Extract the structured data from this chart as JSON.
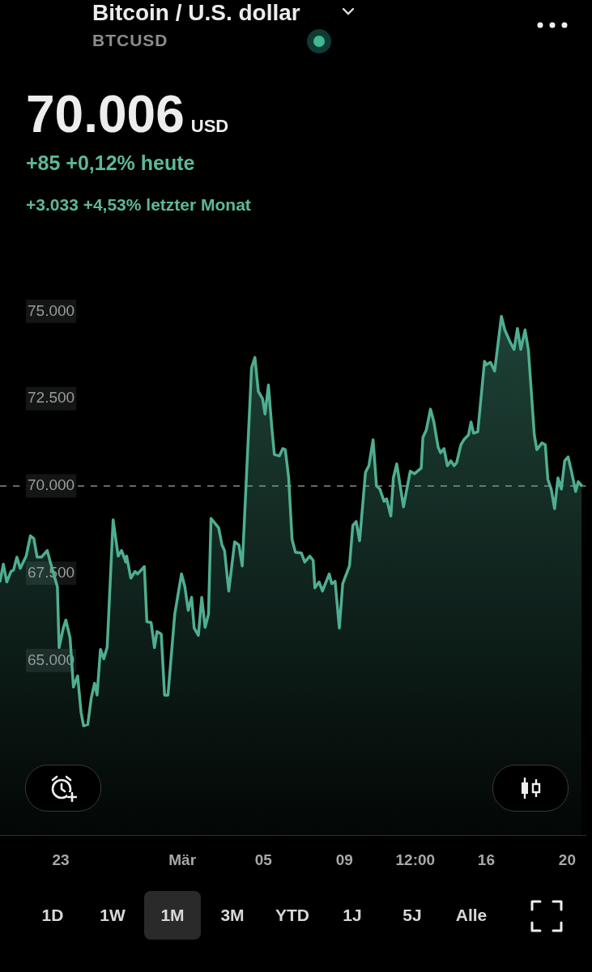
{
  "chart_data": {
    "type": "area",
    "title": "Bitcoin / U.S. dollar",
    "subtitle": "BTCUSD",
    "annotations": [
      "70.006",
      "USD",
      "+85 +0,12% heute",
      "+3.033 +4,53% letzter Monat",
      "1D",
      "1W",
      "1M",
      "3M",
      "YTD",
      "1J",
      "5J",
      "Alle"
    ],
    "x": [
      "--02-20T00:00",
      "--02-20T04:00",
      "--02-20T08:00",
      "--02-20T13:00",
      "--02-20T16:00",
      "--02-20T20:00",
      "--02-21T00:00",
      "--02-21T07:00",
      "--02-21T12:00",
      "--02-21T16:00",
      "--02-21T20:00",
      "--02-22T01:00",
      "--02-22T08:00",
      "--02-22T11:00",
      "--02-22T20:00",
      "--02-22T22:00",
      "--02-23T03:00",
      "--02-23T06:00",
      "--02-23T11:00",
      "--02-23T15:00",
      "--02-23T20:00",
      "--02-24T00:00",
      "--02-24T03:00",
      "--02-24T08:00",
      "--02-24T12:00",
      "--02-24T16:00",
      "--02-24T19:00",
      "--02-24T23:00",
      "--02-25T03:00",
      "--02-25T07:00",
      "--02-25T14:00",
      "--02-25T20:00",
      "--02-26T00:00",
      "--02-26T05:00",
      "--02-26T06:00",
      "--02-26T11:00",
      "--02-26T16:00",
      "--02-26T19:00",
      "--02-27T03:00",
      "--02-27T06:00",
      "--02-27T11:00",
      "--02-27T15:00",
      "--02-27T18:00",
      "--02-27T23:00",
      "--02-28T03:00",
      "--02-28T07:00",
      "--02-28T15:00",
      "--02-28T23:00",
      "--03-01T03:00",
      "--03-01T07:00",
      "--03-01T11:00",
      "--03-01T14:00",
      "--03-01T19:00",
      "--03-01T23:00",
      "--03-02T03:00",
      "--03-02T07:00",
      "--03-02T10:00",
      "--03-02T19:00",
      "--03-02T23:00",
      "--03-03T02:00",
      "--03-03T07:00",
      "--03-03T14:00",
      "--03-03T19:00",
      "--03-03T23:00",
      "--03-04T10:00",
      "--03-04T14:00",
      "--03-04T18:00",
      "--03-04T23:00",
      "--03-05T02:00",
      "--03-05T06:00",
      "--03-05T10:00",
      "--03-05T13:00",
      "--03-05T19:00",
      "--03-05T23:00",
      "--03-06T02:00",
      "--03-06T06:00",
      "--03-06T10:00",
      "--03-06T14:00",
      "--03-06T21:00",
      "--03-07T01:00",
      "--03-07T07:00",
      "--03-07T11:00",
      "--03-07T13:00",
      "--03-07T18:00",
      "--03-07T22:00",
      "--03-08T06:00",
      "--03-08T09:00",
      "--03-08T13:00",
      "--03-08T18:00",
      "--03-08T22:00",
      "--03-09T06:00",
      "--03-09T10:00",
      "--03-09T14:00",
      "--03-09T18:00",
      "--03-10T01:00",
      "--03-10T05:00",
      "--03-10T10:00",
      "--03-10T14:00",
      "--03-10T18:00",
      "--03-10T23:00",
      "--03-11T02:00",
      "--03-11T07:00",
      "--03-11T10:00",
      "--03-11T14:00",
      "--03-11T22:00",
      "--03-12T06:00",
      "--03-12T11:00",
      "--03-12T19:00",
      "--03-12T21:00",
      "--03-13T01:00",
      "--03-13T06:00",
      "--03-13T10:00",
      "--03-13T15:00",
      "--03-13T18:00",
      "--03-13T22:00",
      "--03-14T02:00",
      "--03-14T06:00",
      "--03-14T10:00",
      "--03-14T13:00",
      "--03-14T18:00",
      "--03-14T22:00",
      "--03-15T03:00",
      "--03-15T06:00",
      "--03-15T09:00",
      "--03-15T14:00",
      "--03-15T22:00",
      "--03-16T00:00",
      "--03-16T05:00",
      "--03-16T10:00",
      "--03-16T18:00",
      "--03-16T22:00",
      "--03-17T04:00",
      "--03-17T09:00",
      "--03-17T13:00",
      "--03-17T17:00",
      "--03-17T22:00",
      "--03-18T02:00",
      "--03-18T09:00",
      "--03-18T12:00",
      "--03-18T18:00",
      "--03-18T22:00",
      "--03-19T01:00",
      "--03-19T05:00",
      "--03-19T09:00",
      "--03-19T13:00",
      "--03-19T17:00",
      "--03-19T21:00",
      "--03-20T01:00",
      "--03-20T05:00",
      "--03-20T10:00",
      "--03-20T13:00",
      "--03-20T17:00"
    ],
    "values": [
      67270,
      67760,
      67250,
      67550,
      67590,
      67960,
      67640,
      67990,
      68570,
      68500,
      67960,
      67960,
      68150,
      67870,
      67110,
      65370,
      65930,
      66160,
      65650,
      64240,
      64560,
      63520,
      63130,
      63170,
      63910,
      64350,
      64010,
      65320,
      65050,
      65390,
      69030,
      67990,
      68150,
      67820,
      67990,
      67360,
      67550,
      67480,
      67690,
      66110,
      66090,
      65370,
      65830,
      65760,
      64010,
      64010,
      66320,
      67480,
      67110,
      66440,
      66810,
      65930,
      65720,
      66810,
      65950,
      66320,
      69070,
      68800,
      68310,
      68150,
      66990,
      68400,
      68310,
      67710,
      73380,
      73680,
      72710,
      72500,
      72060,
      72890,
      71670,
      70900,
      70860,
      71070,
      71040,
      70230,
      68470,
      68100,
      68080,
      67820,
      67990,
      67870,
      67080,
      67250,
      66990,
      67480,
      67200,
      67270,
      65930,
      67200,
      67710,
      68870,
      68980,
      68430,
      70390,
      70580,
      71320,
      70000,
      69910,
      69560,
      69630,
      69140,
      70230,
      70630,
      69400,
      70420,
      70350,
      70510,
      71390,
      71600,
      72200,
      71830,
      71110,
      70950,
      71070,
      70580,
      70720,
      70580,
      70670,
      71180,
      71340,
      71460,
      71830,
      71510,
      71550,
      73570,
      73470,
      73540,
      73290,
      74860,
      74470,
      74140,
      73910,
      74510,
      73910,
      74470,
      73890,
      71460,
      71040,
      71230,
      71180,
      70190,
      69910,
      69350,
      70230,
      69910,
      70720,
      70830,
      70420,
      69840,
      70120,
      70010
    ],
    "color": "#4fae91",
    "xlim": [
      "--02-20T00:00",
      "--03-20T22:00"
    ],
    "xticks": [
      {
        "value": "--02-23",
        "label": "23"
      },
      {
        "value": "--03-01",
        "label": "Mär"
      },
      {
        "value": "--03-05",
        "label": "05"
      },
      {
        "value": "--03-09",
        "label": "09"
      },
      {
        "value": "--03-12T12:00",
        "label": "12:00"
      },
      {
        "value": "--03-16",
        "label": "16"
      },
      {
        "value": "--03-20",
        "label": "20"
      }
    ],
    "ylim": [
      60000,
      75000
    ],
    "yticks": [
      {
        "value": 65000,
        "label": "65.000"
      },
      {
        "value": 67500,
        "label": "67.500"
      },
      {
        "value": 70000,
        "label": "70.000"
      },
      {
        "value": 72500,
        "label": "72.500"
      },
      {
        "value": 75000,
        "label": "75.000"
      }
    ],
    "ref_lines": [
      {
        "axis": "y",
        "value": 70000,
        "color": "#8a8a8a",
        "line_style": "dashed"
      }
    ],
    "grid": false,
    "legend": false,
    "marker": "none",
    "line_style": "solid"
  }
}
